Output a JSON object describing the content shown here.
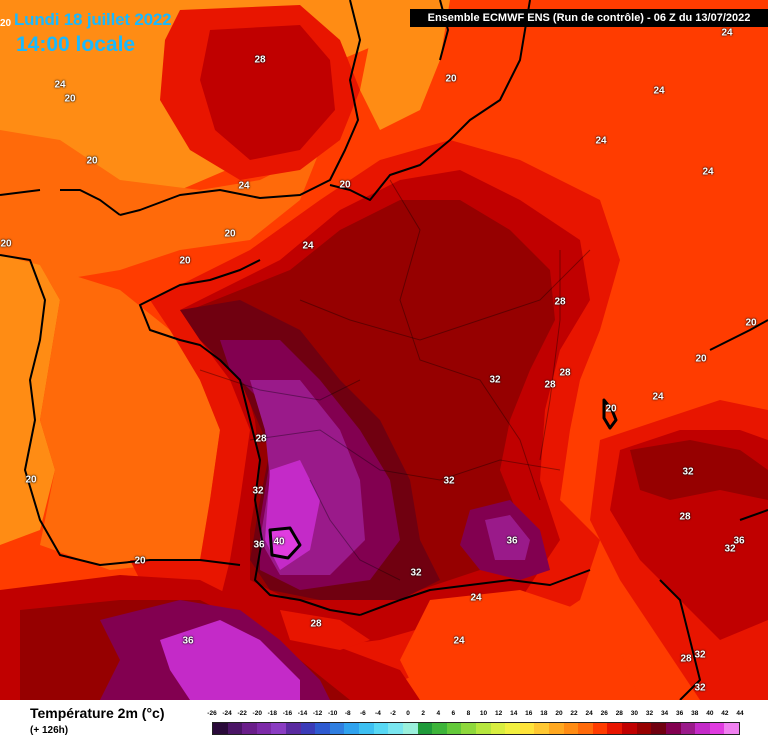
{
  "header": {
    "date_title": "Lundi 18 juillet 2022",
    "time_title": "14:00 locale",
    "model_banner": "Ensemble ECMWF ENS  (Run de contrôle)  -  06 Z du 13/07/2022",
    "corner_value": "20"
  },
  "legend": {
    "title": "Température 2m (°c)",
    "subtitle": "(+ 126h)",
    "ticks": [
      "-26",
      "-24",
      "-22",
      "-20",
      "-18",
      "-16",
      "-14",
      "-12",
      "-10",
      "-8",
      "-6",
      "-4",
      "-2",
      "0",
      "2",
      "4",
      "6",
      "8",
      "10",
      "12",
      "14",
      "16",
      "18",
      "20",
      "22",
      "24",
      "26",
      "28",
      "30",
      "32",
      "34",
      "36",
      "38",
      "40",
      "42",
      "44"
    ],
    "colors": [
      "#2a0a3a",
      "#4b1566",
      "#6a1e8a",
      "#7d2aa8",
      "#8a3cc2",
      "#5a2aa0",
      "#3b3bb8",
      "#2e5ad0",
      "#2f7ee0",
      "#2fa2ee",
      "#3dc0f2",
      "#57d8f4",
      "#7ae6f0",
      "#9af0dc",
      "#1f9a3a",
      "#3db43a",
      "#63c93a",
      "#8ed83c",
      "#b6e63e",
      "#d8ee40",
      "#f2f040",
      "#ffe43a",
      "#ffc832",
      "#ffa820",
      "#ff8c14",
      "#ff6a0a",
      "#ff3c00",
      "#e81500",
      "#c00000",
      "#960000",
      "#700010",
      "#820050",
      "#9a1a8a",
      "#c42ac8",
      "#e03ce0",
      "#f080f0"
    ]
  },
  "map": {
    "colors": {
      "t20": "#ff8c14",
      "t22": "#ff6a0a",
      "t24": "#ff3c00",
      "t26": "#e81500",
      "t28": "#c00000",
      "t30": "#960000",
      "t32": "#700010",
      "t34": "#820050",
      "t36": "#9a1a8a",
      "t38": "#c42ac8",
      "t40": "#e03ce0"
    },
    "contour_labels": [
      {
        "id": "l01",
        "value": "28"
      },
      {
        "id": "l02",
        "value": "24"
      },
      {
        "id": "l03",
        "value": "20"
      },
      {
        "id": "l04",
        "value": "20"
      },
      {
        "id": "l05",
        "value": "24"
      },
      {
        "id": "l06",
        "value": "20"
      },
      {
        "id": "l07",
        "value": "24"
      },
      {
        "id": "l08",
        "value": "20"
      },
      {
        "id": "l09",
        "value": "24"
      },
      {
        "id": "l10",
        "value": "20"
      },
      {
        "id": "l11",
        "value": "24"
      },
      {
        "id": "l12",
        "value": "24"
      },
      {
        "id": "l13",
        "value": "24"
      },
      {
        "id": "l14",
        "value": "20"
      },
      {
        "id": "l15",
        "value": "20"
      },
      {
        "id": "l16",
        "value": "28"
      },
      {
        "id": "l17",
        "value": "20"
      },
      {
        "id": "l18",
        "value": "20"
      },
      {
        "id": "l19",
        "value": "32"
      },
      {
        "id": "l20",
        "value": "28"
      },
      {
        "id": "l21",
        "value": "28"
      },
      {
        "id": "l22",
        "value": "20"
      },
      {
        "id": "l23",
        "value": "24"
      },
      {
        "id": "l24",
        "value": "28"
      },
      {
        "id": "l25",
        "value": "32"
      },
      {
        "id": "l26",
        "value": "32"
      },
      {
        "id": "l27",
        "value": "20"
      },
      {
        "id": "l28",
        "value": "32"
      },
      {
        "id": "l29",
        "value": "28"
      },
      {
        "id": "l30",
        "value": "36"
      },
      {
        "id": "l31",
        "value": "40"
      },
      {
        "id": "l32",
        "value": "36"
      },
      {
        "id": "l33",
        "value": "36"
      },
      {
        "id": "l34",
        "value": "32"
      },
      {
        "id": "l35",
        "value": "20"
      },
      {
        "id": "l36",
        "value": "32"
      },
      {
        "id": "l37",
        "value": "24"
      },
      {
        "id": "l38",
        "value": "28"
      },
      {
        "id": "l39",
        "value": "24"
      },
      {
        "id": "l40",
        "value": "36"
      },
      {
        "id": "l41",
        "value": "32"
      },
      {
        "id": "l42",
        "value": "28"
      },
      {
        "id": "l43",
        "value": "32"
      }
    ]
  }
}
